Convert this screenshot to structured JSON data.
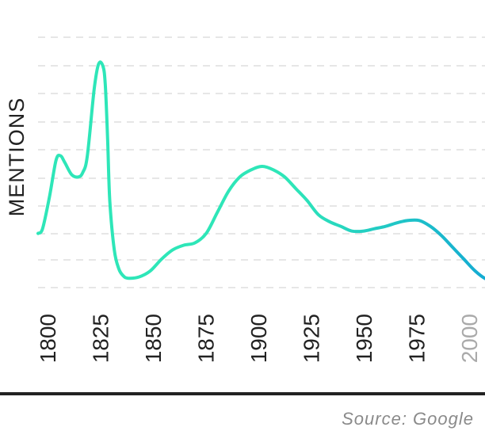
{
  "chart_data": {
    "type": "line",
    "ylabel": "MENTIONS",
    "xlabel": "",
    "title": "",
    "source": "Source: Google",
    "xlim": [
      1800,
      2005
    ],
    "ylim": [
      0,
      100
    ],
    "x_ticks": [
      "1800",
      "1825",
      "1850",
      "1875",
      "1900",
      "1925",
      "1950",
      "1975",
      "2000"
    ],
    "grid": "horizontal dashed",
    "legend": "none",
    "colors": {
      "line_start": "#2ee6b8",
      "line_end": "#12a7d4",
      "grid": "#dddddd",
      "axis": "#222222",
      "faded_tick": "#aaaaaa"
    },
    "series": [
      {
        "x": [
          1800,
          1802,
          1805,
          1808,
          1810,
          1812,
          1815,
          1818,
          1820,
          1822,
          1825,
          1827,
          1829,
          1830,
          1831,
          1832,
          1834,
          1836,
          1838,
          1840,
          1845,
          1850,
          1855,
          1860,
          1865,
          1870,
          1875,
          1880,
          1885,
          1890,
          1895,
          1900,
          1905,
          1910,
          1915,
          1920,
          1925,
          1930,
          1935,
          1940,
          1945,
          1950,
          1955,
          1960,
          1965,
          1970,
          1975,
          1980,
          1985,
          1990,
          1995,
          2000,
          2005
        ],
        "values": [
          21,
          23,
          36,
          52,
          54,
          51,
          46,
          45,
          47,
          54,
          82,
          93,
          92,
          84,
          62,
          35,
          14,
          6,
          3,
          2,
          2.5,
          5,
          10,
          14,
          16,
          17,
          21,
          30,
          39,
          45,
          48,
          49.5,
          48,
          45,
          40,
          35,
          29,
          26,
          24,
          22,
          22,
          23,
          24,
          25.5,
          26.5,
          26.5,
          24,
          20,
          15,
          10,
          5,
          1.5,
          0
        ]
      }
    ]
  }
}
